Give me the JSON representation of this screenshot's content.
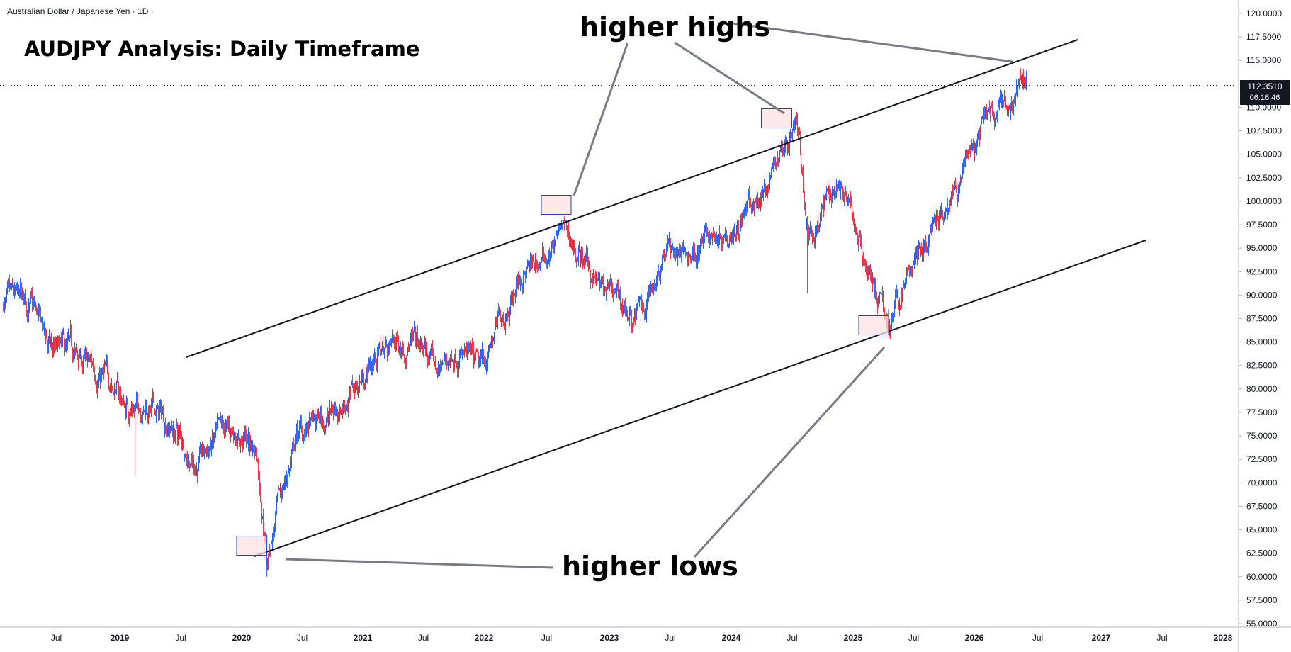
{
  "header": {
    "symbol": "Australian Dollar / Japanese Yen · 1D ·",
    "title": "AUDJPY Analysis: Daily Timeframe"
  },
  "annotations": {
    "higher_highs": "higher highs",
    "higher_lows": "higher lows"
  },
  "price_tag": {
    "price": "112.3510",
    "countdown": "06:16:46"
  },
  "colors": {
    "up": "#2962ff",
    "down": "#f23645",
    "trendline": "#131722",
    "pointer": "#787b86",
    "box_fill": "#fde0e2",
    "box_stroke": "#2a3fb3",
    "grid": "#e0e3eb",
    "axis_text": "#131722"
  },
  "chart_data": {
    "type": "line",
    "title": "AUDJPY Analysis: Daily Timeframe",
    "series": [
      {
        "x": [
          "2018-04",
          "2018-06",
          "2018-08",
          "2018-10",
          "2018-12",
          "2019-01",
          "2019-03",
          "2019-06",
          "2019-08",
          "2019-10",
          "2019-12",
          "2020-02",
          "2020-03",
          "2020-04",
          "2020-06",
          "2020-09",
          "2020-12",
          "2021-02",
          "2021-05",
          "2021-08",
          "2021-10",
          "2021-12",
          "2022-03",
          "2022-04",
          "2022-06",
          "2022-08",
          "2022-10",
          "2022-12",
          "2023-03",
          "2023-04",
          "2023-06",
          "2023-08",
          "2023-10",
          "2023-12",
          "2024-03",
          "2024-05",
          "2024-07",
          "2024-08",
          "2024-09",
          "2024-11",
          "2025-01",
          "2025-04",
          "2025-06",
          "2025-08",
          "2025-10",
          "2025-12",
          "2026-01",
          "2026-03",
          "2026-04",
          "2026-05"
        ],
        "values": [
          89.0,
          84.0,
          83.5,
          82.0,
          80.5,
          78.0,
          78.5,
          75.5,
          72.0,
          74.5,
          75.5,
          73.5,
          62.0,
          67.0,
          75.0,
          77.0,
          80.5,
          84.0,
          85.5,
          82.0,
          84.5,
          81.5,
          90.0,
          92.0,
          93.5,
          97.0,
          93.5,
          90.0,
          87.5,
          89.0,
          95.5,
          94.0,
          96.0,
          97.5,
          99.5,
          104.5,
          108.5,
          96.0,
          98.5,
          102.5,
          96.0,
          86.5,
          92.5,
          96.0,
          98.5,
          104.5,
          107.0,
          111.5,
          110.0,
          112.35
        ]
      }
    ],
    "ylim": [
      55.0,
      120.0
    ],
    "yticks": [
      "120.0000",
      "117.5000",
      "115.0000",
      "112.5000",
      "110.0000",
      "107.5000",
      "105.0000",
      "102.5000",
      "100.0000",
      "97.5000",
      "95.0000",
      "92.5000",
      "90.0000",
      "87.5000",
      "85.0000",
      "82.5000",
      "80.0000",
      "77.5000",
      "75.0000",
      "72.5000",
      "70.0000",
      "67.5000",
      "65.0000",
      "62.5000",
      "60.0000",
      "57.5000",
      "55.0000"
    ],
    "xticks": [
      "Jul",
      "2019",
      "Jul",
      "2020",
      "Jul",
      "2021",
      "Jul",
      "2022",
      "Jul",
      "2023",
      "Jul",
      "2024",
      "Jul",
      "2025",
      "Jul",
      "2026",
      "Jul",
      "2027",
      "Jul",
      "2028"
    ],
    "current_price": 112.351,
    "trendlines": [
      {
        "from": [
          "2018-06",
          83.5
        ],
        "to": [
          "2026-05",
          115.0
        ]
      },
      {
        "from": [
          "2020-03",
          62.0
        ],
        "to": [
          "2026-05",
          95.5
        ]
      }
    ],
    "highlights": [
      {
        "label": "higher highs",
        "points": [
          [
            "2022-08",
            98.5
          ],
          [
            "2024-07",
            108.5
          ],
          [
            "2026-05",
            115.0
          ]
        ]
      },
      {
        "label": "higher lows",
        "points": [
          [
            "2020-03",
            62.0
          ],
          [
            "2025-04",
            86.0
          ]
        ]
      }
    ],
    "grid": false
  }
}
